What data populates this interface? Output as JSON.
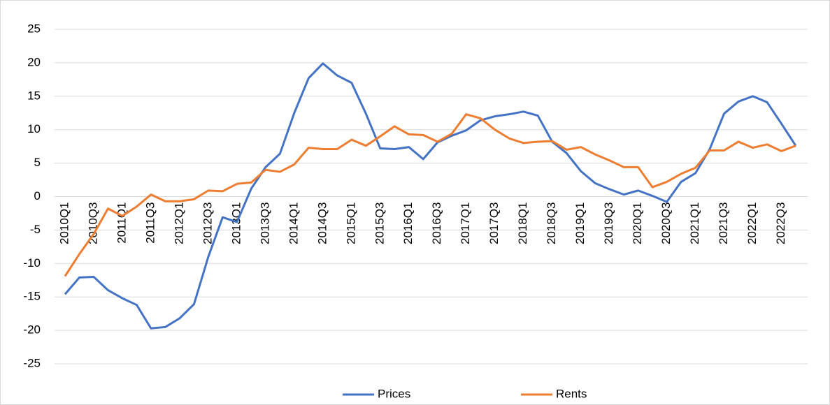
{
  "chart_data": {
    "type": "line",
    "categories": [
      "2010Q1",
      null,
      "2010Q3",
      null,
      "2011Q1",
      null,
      "2011Q3",
      null,
      "2012Q1",
      null,
      "2012Q3",
      null,
      "2013Q1",
      null,
      "2013Q3",
      null,
      "2014Q1",
      null,
      "2014Q3",
      null,
      "2015Q1",
      null,
      "2015Q3",
      null,
      "2016Q1",
      null,
      "2016Q3",
      null,
      "2017Q1",
      null,
      "2017Q3",
      null,
      "2018Q1",
      null,
      "2018Q3",
      null,
      "2019Q1",
      null,
      "2019Q3",
      null,
      "2020Q1",
      null,
      "2020Q3",
      null,
      "2021Q1",
      null,
      "2021Q3",
      null,
      "2022Q1",
      null,
      "2022Q3",
      null
    ],
    "series": [
      {
        "name": "Prices",
        "color": "#4472c4",
        "values": [
          -14.6,
          -12.1,
          -12.0,
          -14.0,
          -15.2,
          -16.2,
          -19.7,
          -19.5,
          -18.2,
          -16.1,
          -9.0,
          -3.1,
          -3.8,
          1.2,
          4.4,
          6.4,
          12.5,
          17.7,
          19.9,
          18.1,
          17.0,
          12.4,
          7.2,
          7.1,
          7.4,
          5.6,
          8.1,
          9.1,
          9.9,
          11.4,
          12.0,
          12.3,
          12.7,
          12.1,
          8.2,
          6.5,
          3.8,
          2.0,
          1.1,
          0.3,
          0.9,
          0.1,
          -0.8,
          2.2,
          3.5,
          7.1,
          12.4,
          14.2,
          15.0,
          14.1,
          10.9,
          7.6
        ]
      },
      {
        "name": "Rents",
        "color": "#ed7d31",
        "values": [
          -11.9,
          -8.6,
          -5.6,
          -1.8,
          -2.9,
          -1.5,
          0.3,
          -0.7,
          -0.7,
          -0.4,
          0.9,
          0.8,
          1.9,
          2.1,
          4.0,
          3.7,
          4.8,
          7.3,
          7.1,
          7.1,
          8.5,
          7.6,
          9.0,
          10.5,
          9.3,
          9.2,
          8.2,
          9.4,
          12.3,
          11.7,
          10.0,
          8.7,
          8.0,
          8.2,
          8.3,
          7.0,
          7.4,
          6.3,
          5.4,
          4.4,
          4.4,
          1.4,
          2.2,
          3.4,
          4.3,
          6.9,
          6.9,
          8.2,
          7.3,
          7.8,
          6.8,
          7.6
        ]
      }
    ],
    "ylim": [
      -25,
      25
    ],
    "yticks": [
      -25,
      -20,
      -15,
      -10,
      -5,
      0,
      5,
      10,
      15,
      20,
      25
    ],
    "grid": true,
    "legend": "bottom"
  }
}
